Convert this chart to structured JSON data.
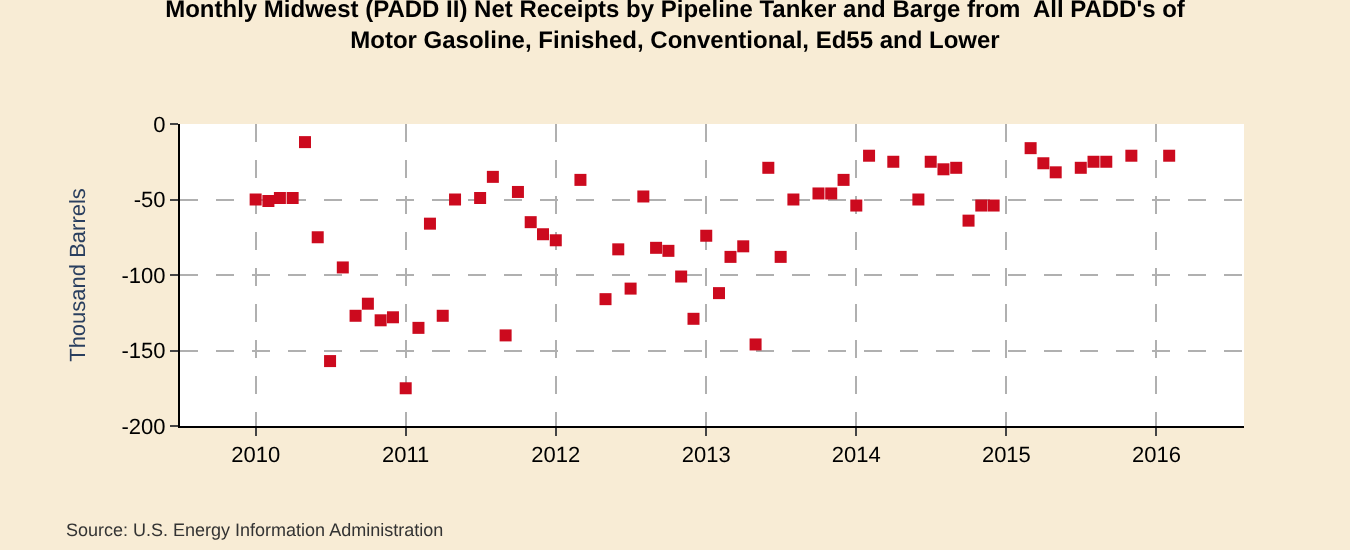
{
  "chart_data": {
    "type": "scatter",
    "title": "Monthly Midwest (PADD II) Net Receipts by Pipeline Tanker and Barge from  All PADD's of Motor Gasoline, Finished, Conventional, Ed55 and Lower",
    "ylabel": "Thousand Barrels",
    "annotations": [
      "Source: U.S. Energy Information Administration"
    ],
    "x": [
      "2010-01",
      "2010-02",
      "2010-03",
      "2010-04",
      "2010-05",
      "2010-06",
      "2010-07",
      "2010-08",
      "2010-09",
      "2010-10",
      "2010-11",
      "2010-12",
      "2011-01",
      "2011-02",
      "2011-03",
      "2011-04",
      "2011-05",
      "2011-07",
      "2011-08",
      "2011-09",
      "2011-10",
      "2011-11",
      "2011-12",
      "2012-01",
      "2012-03",
      "2012-05",
      "2012-06",
      "2012-07",
      "2012-08",
      "2012-09",
      "2012-10",
      "2012-11",
      "2012-12",
      "2013-01",
      "2013-02",
      "2013-03",
      "2013-04",
      "2013-05",
      "2013-06",
      "2013-07",
      "2013-08",
      "2013-10",
      "2013-11",
      "2013-12",
      "2014-01",
      "2014-02",
      "2014-04",
      "2014-06",
      "2014-07",
      "2014-08",
      "2014-09",
      "2014-10",
      "2014-11",
      "2014-12",
      "2015-03",
      "2015-04",
      "2015-05",
      "2015-07",
      "2015-08",
      "2015-09",
      "2015-11",
      "2016-02"
    ],
    "series": [
      {
        "color": "#cc0a1e",
        "values": [
          -50,
          -51,
          -49,
          -49,
          -12,
          -75,
          -157,
          -95,
          -127,
          -119,
          -130,
          -128,
          -175,
          -135,
          -66,
          -127,
          -50,
          -49,
          -35,
          -140,
          -45,
          -65,
          -73,
          -77,
          -37,
          -116,
          -83,
          -109,
          -48,
          -82,
          -84,
          -101,
          -129,
          -74,
          -112,
          -88,
          -81,
          -146,
          -29,
          -88,
          -50,
          -46,
          -46,
          -37,
          -54,
          -21,
          -25,
          -50,
          -25,
          -30,
          -29,
          -64,
          -54,
          -54,
          -16,
          -26,
          -32,
          -29,
          -25,
          -25,
          -21,
          -21
        ]
      }
    ],
    "xlim": [
      "2009-07",
      "2016-08"
    ],
    "xticks": [
      {
        "value": "2010",
        "label": "2010"
      },
      {
        "value": "2011",
        "label": "2011"
      },
      {
        "value": "2012",
        "label": "2012"
      },
      {
        "value": "2013",
        "label": "2013"
      },
      {
        "value": "2014",
        "label": "2014"
      },
      {
        "value": "2015",
        "label": "2015"
      },
      {
        "value": "2016",
        "label": "2016"
      }
    ],
    "ylim": [
      -200,
      0
    ],
    "yticks": [
      -200,
      -150,
      -100,
      -50,
      0
    ],
    "grid": true,
    "marker": "square"
  }
}
